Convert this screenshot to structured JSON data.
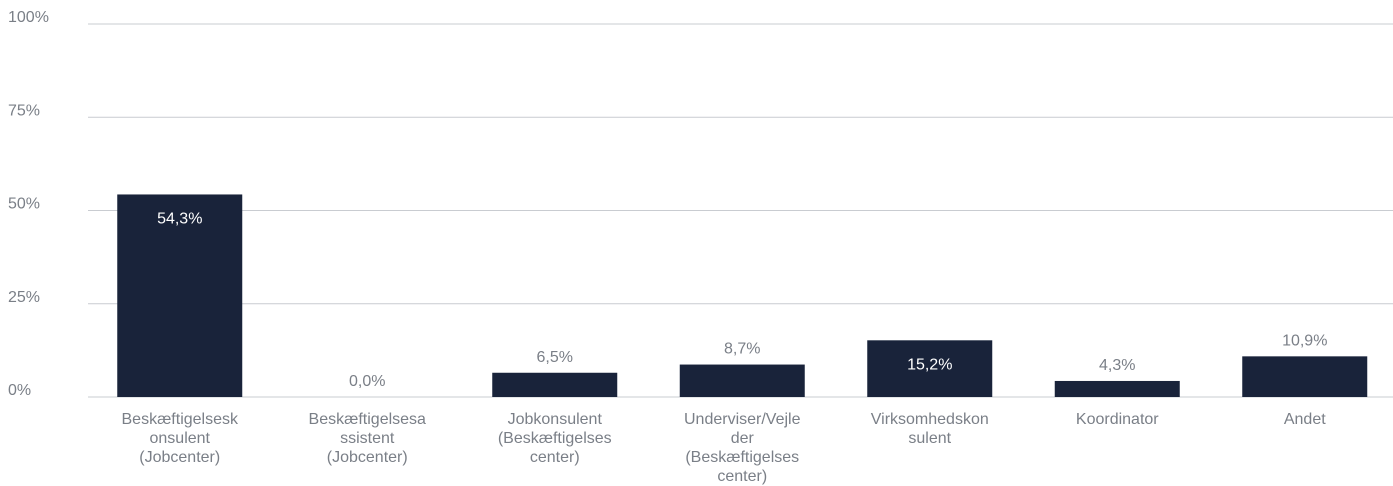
{
  "chart_data": {
    "type": "bar",
    "title": "",
    "xlabel": "",
    "ylabel": "",
    "categories": [
      [
        "Beskæftigelsesk",
        "onsulent",
        "(Jobcenter)"
      ],
      [
        "Beskæftigelsesa",
        "ssistent",
        "(Jobcenter)"
      ],
      [
        "Jobkonsulent",
        "(Beskæftigelses",
        "center)"
      ],
      [
        "Underviser/Vejle",
        "der",
        "(Beskæftigelses",
        "center)"
      ],
      [
        "Virksomhedskon",
        "sulent"
      ],
      [
        "Koordinator"
      ],
      [
        "Andet"
      ]
    ],
    "values": [
      54.3,
      0.0,
      6.5,
      8.7,
      15.2,
      4.3,
      10.9
    ],
    "value_labels": [
      "54,3%",
      "0,0%",
      "6,5%",
      "8,7%",
      "15,2%",
      "4,3%",
      "10,9%"
    ],
    "label_inside_bar": [
      true,
      false,
      false,
      false,
      true,
      false,
      false
    ],
    "ylim": [
      0,
      100
    ],
    "yticks": [
      0,
      25,
      50,
      75,
      100
    ],
    "ytick_labels": [
      "0%",
      "25%",
      "50%",
      "75%",
      "100%"
    ],
    "grid": true,
    "legend": "none",
    "colors": {
      "bar": "#19233a",
      "grid": "#c9ccd1",
      "axis_text": "#7a7f87",
      "label_outside": "#7a7f87",
      "label_inside": "#ffffff"
    }
  }
}
